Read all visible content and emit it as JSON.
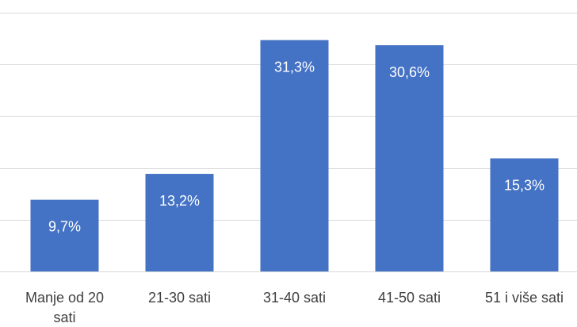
{
  "chart_data": {
    "type": "bar",
    "title": "",
    "xlabel": "",
    "ylabel": "",
    "categories": [
      "Manje od 20 sati",
      "21-30 sati",
      "31-40 sati",
      "41-50 sati",
      "51 i više sati"
    ],
    "category_label_lines": [
      [
        "Manje od 20",
        "sati"
      ],
      [
        "21-30 sati"
      ],
      [
        "31-40 sati"
      ],
      [
        "41-50 sati"
      ],
      [
        "51 i više sati"
      ]
    ],
    "values": [
      9.7,
      13.2,
      31.3,
      30.6,
      15.3
    ],
    "data_labels": [
      "9,7%",
      "13,2%",
      "31,3%",
      "30,6%",
      "15,3%"
    ],
    "ylim": [
      0,
      35
    ],
    "grid": true,
    "legend": "none",
    "bar_color": "#4472c4"
  }
}
